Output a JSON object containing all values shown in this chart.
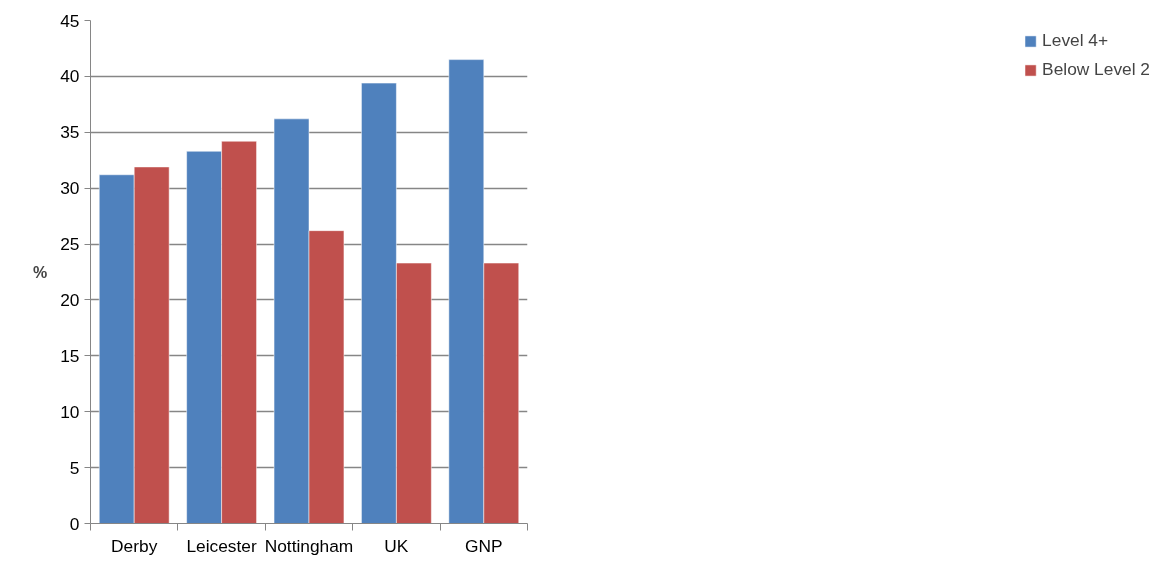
{
  "chart_data": {
    "type": "bar",
    "ylabel": "%",
    "categories": [
      "Derby",
      "Leicester",
      "Nottingham",
      "UK",
      "GNP"
    ],
    "series": [
      {
        "name": "Level 4+",
        "color": "#4f81bd",
        "values": [
          31.2,
          33.3,
          36.2,
          39.4,
          41.5
        ]
      },
      {
        "name": "Below Level 2",
        "color": "#c0504d",
        "values": [
          31.9,
          34.2,
          26.2,
          23.3,
          23.3
        ]
      }
    ],
    "ylim": [
      0,
      45
    ],
    "yticks": [
      0,
      5,
      10,
      15,
      20,
      25,
      30,
      35,
      40,
      45
    ],
    "grid": "y",
    "legend": "right"
  }
}
